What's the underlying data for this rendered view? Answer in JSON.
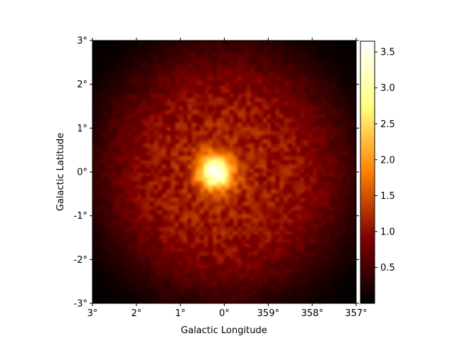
{
  "chart_data": {
    "type": "heatmap",
    "title": "",
    "xlabel": "Galactic Longitude",
    "ylabel": "Galactic Latitude",
    "x_ticks": [
      "3°",
      "2°",
      "1°",
      "0°",
      "359°",
      "358°",
      "357°"
    ],
    "y_ticks": [
      "-3°",
      "-2°",
      "-1°",
      "0°",
      "1°",
      "2°",
      "3°"
    ],
    "xlim_deg": [
      3,
      -3
    ],
    "ylim_deg": [
      -3,
      3
    ],
    "colormap": "afmhot",
    "colorbar": {
      "ticks": [
        "0.5",
        "1.0",
        "1.5",
        "2.0",
        "2.5",
        "3.0",
        "3.5"
      ],
      "tick_values": [
        0.5,
        1.0,
        1.5,
        2.0,
        2.5,
        3.0,
        3.5
      ],
      "range": [
        0.0,
        3.65
      ]
    },
    "background_level": 1.1,
    "source": {
      "l_deg": 0.2,
      "b_deg": 0.0,
      "peak": 3.6
    },
    "grid": false
  }
}
